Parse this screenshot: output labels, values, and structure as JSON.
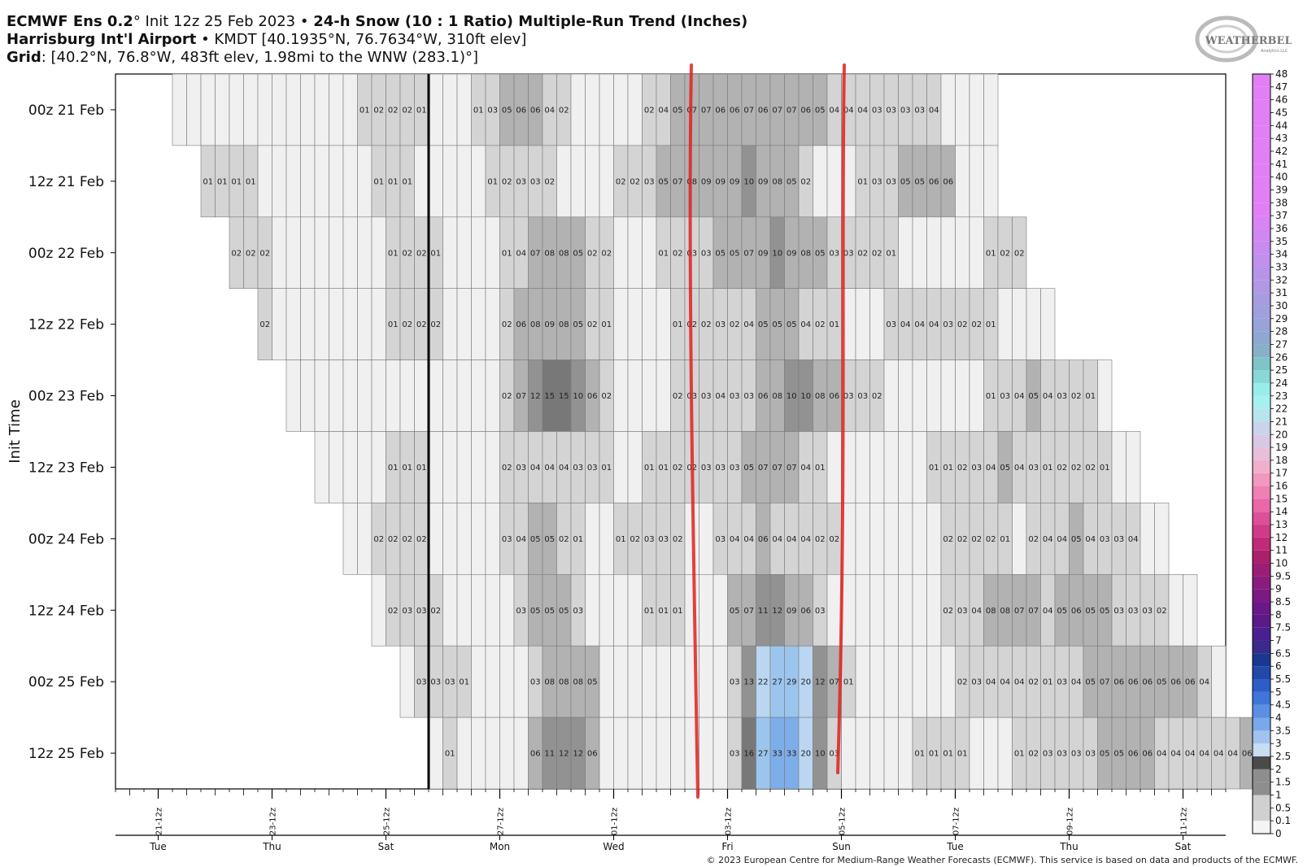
{
  "header": {
    "line1_a": "ECMWF Ens 0.2",
    "line1_b": "° Init 12z 25 Feb 2023 • ",
    "line1_c": "24-h Snow (10 : 1 Ratio) Multiple-Run Trend (Inches)",
    "line2_a": "Harrisburg Int'l Airport",
    "line2_b": " • KMDT [40.1935°N, 76.7634°W, 310ft elev]",
    "line3_a": "Grid",
    "line3_b": ": [40.2°N, 76.8°W, 483ft elev, 1.98mi to the WNW (283.1)°]"
  },
  "logo": {
    "text": "WEATHERBELL",
    "sub": "Analytics LLC"
  },
  "footer": "© 2023 European Centre for Medium-Range Weather Forecasts (ECMWF). This service is based on data and products of the ECMWF.",
  "chart_data": {
    "type": "heatmap",
    "ylabel": "Init Time",
    "rows": [
      "00z 21 Feb",
      "12z 21 Feb",
      "00z 22 Feb",
      "12z 22 Feb",
      "00z 23 Feb",
      "12z 23 Feb",
      "00z 24 Feb",
      "12z 24 Feb",
      "00z 25 Feb",
      "12z 25 Feb"
    ],
    "x_tick_labels": [
      "21-12z",
      "23-12z",
      "25-12z",
      "27-12z",
      "01-12z",
      "03-12z",
      "05-12z",
      "07-12z",
      "09-12z",
      "11-12z"
    ],
    "day_labels": [
      "Tue",
      "Thu",
      "Sat",
      "Mon",
      "Wed",
      "Fri",
      "Sun",
      "Tue",
      "Thu",
      "Sat"
    ],
    "time_step_hours": 6,
    "axis_start": "2023-02-20 18z",
    "valid_start_steps": [
      4,
      6,
      8,
      10,
      12,
      14,
      16,
      18,
      20,
      22
    ],
    "values": [
      [
        0,
        0,
        0,
        0,
        0,
        0,
        0,
        0,
        0,
        0,
        0,
        0,
        0,
        0.1,
        0.2,
        0.2,
        0.2,
        0.1,
        0,
        0,
        0,
        0.1,
        0.3,
        0.5,
        0.6,
        0.6,
        0.4,
        0.2,
        0,
        0,
        0,
        0,
        0,
        0.2,
        0.4,
        0.5,
        0.7,
        0.7,
        0.6,
        0.6,
        0.7,
        0.6,
        0.7,
        0.7,
        0.6,
        0.5,
        0.4,
        0.4,
        0.4,
        0.3,
        0.3,
        0.3,
        0.3,
        0.4,
        0,
        0,
        0,
        0
      ],
      [
        0.1,
        0.1,
        0.1,
        0.1,
        0,
        0,
        0,
        0,
        0,
        0,
        0,
        0,
        0.1,
        0.1,
        0.1,
        0,
        0,
        0,
        0,
        0,
        0.1,
        0.2,
        0.3,
        0.3,
        0.2,
        0,
        0,
        0,
        0,
        0.2,
        0.2,
        0.3,
        0.5,
        0.7,
        0.8,
        0.9,
        0.9,
        0.9,
        1.0,
        0.9,
        0.8,
        0.5,
        0.2,
        0,
        0,
        0,
        0.1,
        0.3,
        0.3,
        0.5,
        0.5,
        0.6,
        0.6,
        0,
        0,
        0
      ],
      [
        0.2,
        0.2,
        0.2,
        0,
        0,
        0,
        0,
        0,
        0,
        0,
        0,
        0.1,
        0.2,
        0.2,
        0.1,
        0,
        0,
        0,
        0,
        0.1,
        0.4,
        0.7,
        0.8,
        0.8,
        0.5,
        0.2,
        0.2,
        0,
        0,
        0,
        0.1,
        0.2,
        0.3,
        0.3,
        0.5,
        0.5,
        0.7,
        0.9,
        1.0,
        0.9,
        0.8,
        0.5,
        0.3,
        0.3,
        0.2,
        0.2,
        0.1,
        0,
        0,
        0,
        0,
        0,
        0,
        0.1,
        0.2,
        0.2
      ],
      [
        0.2,
        0,
        0,
        0,
        0,
        0,
        0,
        0,
        0,
        0.1,
        0.2,
        0.2,
        0.2,
        0,
        0,
        0,
        0,
        0.2,
        0.6,
        0.8,
        0.9,
        0.8,
        0.5,
        0.2,
        0.1,
        0,
        0,
        0,
        0,
        0.1,
        0.2,
        0.2,
        0.3,
        0.2,
        0.4,
        0.5,
        0.5,
        0.5,
        0.4,
        0.2,
        0.1,
        0,
        0,
        0,
        0.3,
        0.4,
        0.4,
        0.4,
        0.3,
        0.2,
        0.2,
        0.1,
        0,
        0,
        0,
        0
      ],
      [
        0,
        0,
        0,
        0,
        0,
        0,
        0,
        0,
        0,
        0,
        0,
        0,
        0,
        0,
        0,
        0.2,
        0.7,
        1.2,
        1.5,
        1.5,
        1.0,
        0.6,
        0.2,
        0,
        0,
        0,
        0,
        0.2,
        0.3,
        0.3,
        0.4,
        0.3,
        0.3,
        0.6,
        0.8,
        1.0,
        1.0,
        0.8,
        0.6,
        0.3,
        0.3,
        0.2,
        0,
        0,
        0,
        0,
        0,
        0,
        0,
        0.1,
        0.3,
        0.4,
        0.5,
        0.4,
        0.3,
        0.2,
        0.1,
        0
      ],
      [
        0,
        0,
        0,
        0,
        0,
        0.1,
        0.1,
        0.1,
        0,
        0,
        0,
        0,
        0,
        0.2,
        0.3,
        0.4,
        0.4,
        0.4,
        0.3,
        0.3,
        0.1,
        0,
        0,
        0.1,
        0.1,
        0.2,
        0.2,
        0.3,
        0.3,
        0.3,
        0.5,
        0.7,
        0.7,
        0.7,
        0.4,
        0.1,
        0,
        0,
        0,
        0,
        0,
        0,
        0,
        0.1,
        0.1,
        0.2,
        0.3,
        0.4,
        0.5,
        0.4,
        0.3,
        0.1,
        0.2,
        0.2,
        0.2,
        0.1,
        0,
        0
      ],
      [
        0,
        0,
        0.2,
        0.2,
        0.2,
        0.2,
        0,
        0,
        0,
        0,
        0,
        0.3,
        0.4,
        0.5,
        0.5,
        0.2,
        0.1,
        0,
        0,
        0.1,
        0.2,
        0.3,
        0.3,
        0.2,
        0,
        0,
        0.3,
        0.4,
        0.4,
        0.6,
        0.4,
        0.4,
        0.4,
        0.2,
        0.2,
        0,
        0,
        0,
        0,
        0,
        0,
        0,
        0.2,
        0.2,
        0.2,
        0.2,
        0.1,
        0,
        0.2,
        0.4,
        0.4,
        0.5,
        0.4,
        0.3,
        0.3,
        0.4,
        0,
        0
      ],
      [
        0,
        0.2,
        0.3,
        0.3,
        0.2,
        0,
        0,
        0,
        0,
        0,
        0.3,
        0.5,
        0.5,
        0.5,
        0.3,
        0,
        0,
        0,
        0,
        0.1,
        0.1,
        0.1,
        0,
        0,
        0,
        0.5,
        0.7,
        1.1,
        1.2,
        0.9,
        0.6,
        0.3,
        0,
        0,
        0,
        0,
        0,
        0,
        0,
        0,
        0.2,
        0.3,
        0.4,
        0.8,
        0.8,
        0.7,
        0.7,
        0.4,
        0.5,
        0.6,
        0.5,
        0.5,
        0.3,
        0.3,
        0.3,
        0.2,
        0,
        0
      ],
      [
        0,
        0.3,
        0.3,
        0.3,
        0.1,
        0,
        0,
        0,
        0,
        0.3,
        0.8,
        0.8,
        0.8,
        0.5,
        0,
        0,
        0,
        0,
        0,
        0,
        0,
        0,
        0,
        0.3,
        1.3,
        2.2,
        2.7,
        2.9,
        2.0,
        1.2,
        0.7,
        0.1,
        0,
        0,
        0,
        0,
        0,
        0,
        0,
        0.2,
        0.3,
        0.4,
        0.4,
        0.4,
        0.2,
        0.1,
        0.3,
        0.4,
        0.5,
        0.7,
        0.6,
        0.6,
        0.6,
        0.5,
        0.6,
        0.6,
        0.4,
        0
      ],
      [
        0,
        0.1,
        0,
        0,
        0,
        0,
        0,
        0.6,
        1.1,
        1.2,
        1.2,
        0.6,
        0,
        0,
        0,
        0,
        0,
        0,
        0,
        0,
        0,
        0.3,
        1.6,
        2.7,
        3.3,
        3.3,
        2.0,
        1.0,
        0.3,
        0,
        0,
        0,
        0,
        0,
        0.1,
        0.1,
        0.1,
        0.1,
        0,
        0,
        0,
        0.1,
        0.2,
        0.3,
        0.3,
        0.3,
        0.3,
        0.5,
        0.5,
        0.6,
        0.6,
        0.4,
        0.4,
        0.4,
        0.4,
        0.4,
        0.4,
        0.6
      ]
    ],
    "colorbar_ticks": [
      "0",
      "0.1",
      "0.5",
      "1",
      "1.5",
      "2",
      "2.5",
      "3",
      "3.5",
      "4",
      "4.5",
      "5",
      "5.5",
      "6",
      "6.5",
      "7",
      "7.5",
      "8",
      "8.5",
      "9",
      "9.5",
      "10",
      "11",
      "12",
      "13",
      "14",
      "15",
      "16",
      "17",
      "18",
      "19",
      "20",
      "21",
      "22",
      "23",
      "24",
      "25",
      "26",
      "27",
      "28",
      "29",
      "30",
      "31",
      "32",
      "33",
      "34",
      "35",
      "36",
      "37",
      "38",
      "39",
      "40",
      "41",
      "42",
      "43",
      "44",
      "45",
      "46",
      "47",
      "48"
    ],
    "colors": {
      "le0": "#f0f0f0",
      "lt05": "#d4d4d4",
      "lt1": "#b2b2b2",
      "lt15": "#929292",
      "lt2": "#787878",
      "lt25": "#bad6f0",
      "lt3": "#9cc5ee",
      "lt35": "#7eaee9",
      "lt4": "#6299e3",
      "ge4": "#4a80dc",
      "grid": "#7a7a7a",
      "annotation": "#e02020"
    }
  }
}
